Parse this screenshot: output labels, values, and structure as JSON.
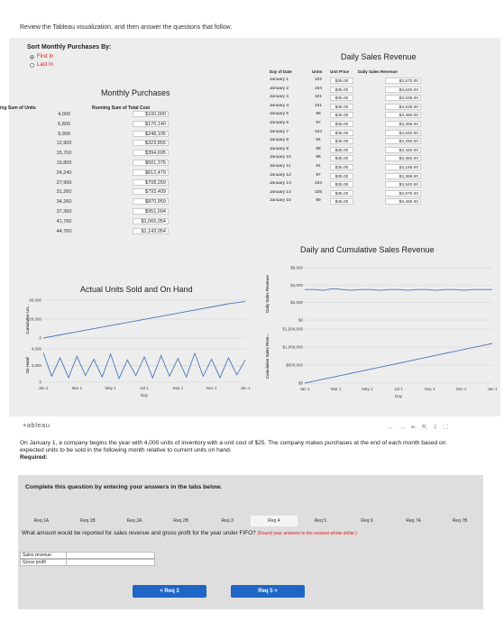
{
  "instruction": "Review the Tableau visualization, and then answer the questions that follow.",
  "sort": {
    "title": "Sort Monthly Purchases By:",
    "options": [
      "First In",
      "Last In"
    ],
    "selected": "First In"
  },
  "monthly_purchases": {
    "title": "Monthly Purchases",
    "col1_header": "ing Sum of Units",
    "col2_header": "Running Sum of Total Cost",
    "units": [
      "4,000",
      "6,800",
      "9,900",
      "12,900",
      "15,700",
      "19,800",
      "24,240",
      "27,960",
      "31,260",
      "34,260",
      "37,360",
      "41,760",
      "44,760"
    ],
    "costs": [
      "$100,000",
      "$170,140",
      "$248,105",
      "$323,855",
      "$394,695",
      "$501,375",
      "$612,479",
      "$708,269",
      "$793,409",
      "$870,959",
      "$951,094",
      "$1,065,054",
      "$1,143,054"
    ]
  },
  "daily_sales": {
    "title": "Daily Sales Revenue",
    "headers": {
      "date": "Day of Date",
      "units": "Units",
      "price": "Unit Price",
      "revenue": "Daily Sales Revenue"
    },
    "rows": [
      {
        "date": "January 1",
        "units": "102",
        "price": "$35.00",
        "revenue": "$3,570.00"
      },
      {
        "date": "January 2",
        "units": "104",
        "price": "$35.00",
        "revenue": "$3,640.00"
      },
      {
        "date": "January 3",
        "units": "101",
        "price": "$35.00",
        "revenue": "$3,535.00"
      },
      {
        "date": "January 4",
        "units": "101",
        "price": "$35.00",
        "revenue": "$3,535.00"
      },
      {
        "date": "January 5",
        "units": "96",
        "price": "$35.00",
        "revenue": "$3,360.00"
      },
      {
        "date": "January 6",
        "units": "97",
        "price": "$35.00",
        "revenue": "$3,395.00"
      },
      {
        "date": "January 7",
        "units": "104",
        "price": "$35.00",
        "revenue": "$3,640.00"
      },
      {
        "date": "January 8",
        "units": "94",
        "price": "$35.00",
        "revenue": "$3,290.00"
      },
      {
        "date": "January 9",
        "units": "98",
        "price": "$35.00",
        "revenue": "$3,430.00"
      },
      {
        "date": "January 10",
        "units": "96",
        "price": "$35.00",
        "revenue": "$3,360.00"
      },
      {
        "date": "January 11",
        "units": "91",
        "price": "$35.00",
        "revenue": "$3,185.00"
      },
      {
        "date": "January 12",
        "units": "97",
        "price": "$35.00",
        "revenue": "$3,395.00"
      },
      {
        "date": "January 13",
        "units": "104",
        "price": "$35.00",
        "revenue": "$3,640.00"
      },
      {
        "date": "January 14",
        "units": "105",
        "price": "$35.00",
        "revenue": "$3,675.00"
      },
      {
        "date": "January 15",
        "units": "99",
        "price": "$35.00",
        "revenue": "$3,465.00"
      }
    ]
  },
  "chart_data": [
    {
      "type": "line",
      "title": "Daily and Cumulative Sales Revenue",
      "panels": [
        {
          "ylabel": "Daily Sales Revenue",
          "yticks": [
            "$6,000",
            "$4,000",
            "$2,000",
            "$0"
          ],
          "ylim": [
            0,
            6000
          ],
          "series": [
            {
              "values": [
                3500,
                3500,
                3400,
                3600,
                3500,
                3400,
                3500,
                3500,
                3400,
                3500,
                3500,
                3400,
                3500,
                3500,
                3400,
                3500,
                3500,
                3400,
                3500,
                3500,
                3500
              ]
            }
          ]
        },
        {
          "ylabel": "Cumulative Sales Reve...",
          "yticks": [
            "$1,500,000",
            "$1,000,000",
            "$500,000",
            "$0"
          ],
          "ylim": [
            0,
            1500000
          ],
          "series": [
            {
              "values": [
                0,
                55000,
                110000,
                165000,
                220000,
                275000,
                330000,
                385000,
                440000,
                495000,
                550000,
                605000,
                660000,
                715000,
                770000,
                825000,
                880000,
                935000,
                990000,
                1045000,
                1100000
              ]
            }
          ]
        }
      ],
      "xticks": [
        "Jan 1",
        "Mar 1",
        "May 1",
        "Jul 1",
        "Sep 1",
        "Nov 1",
        "Jan 1"
      ],
      "xlabel": "Day"
    },
    {
      "type": "line",
      "title": "Actual Units Sold and On Hand",
      "panels": [
        {
          "ylabel": "Cumulative Un...",
          "yticks": [
            "40,000",
            "20,000",
            "0"
          ],
          "ylim": [
            0,
            45000
          ],
          "series": [
            {
              "values": [
                0,
                3700,
                7400,
                11100,
                14800,
                18500,
                22200,
                25900,
                29600,
                33300,
                37000,
                40700,
                43500
              ]
            }
          ]
        },
        {
          "ylabel": "On Hand",
          "yticks": [
            "4,000",
            "2,000",
            "0"
          ],
          "ylim": [
            0,
            4500
          ],
          "series": [
            {
              "values": [
                4000,
                800,
                3300,
                600,
                3500,
                900,
                3100,
                700,
                3800,
                500,
                3000,
                900,
                3400,
                600,
                3600,
                800,
                3200,
                700,
                3900,
                800,
                3100,
                600,
                3300,
                1000,
                3000
              ]
            }
          ]
        }
      ],
      "xticks": [
        "Jan 1",
        "Mar 1",
        "May 1",
        "Jul 1",
        "Sep 1",
        "Nov 1",
        "Jan 1"
      ],
      "xlabel": "Day"
    }
  ],
  "tableau_logo": "+ableau",
  "problem": "On January 1, a company begins the year with 4,000 units of inventory with a unit cost of $25. The company makes purchases at the end of each month based on expected units to be sold in the following month relative to current units on hand.",
  "required_label": "Required:",
  "complete_text": "Complete this question by entering your answers in the tabs below.",
  "tabs": [
    "Req 1A",
    "Req 1B",
    "Req 2A",
    "Req 2B",
    "Req 3",
    "Req 4",
    "Req 5",
    "Req 6",
    "Req 7A",
    "Req 7B"
  ],
  "active_tab": "Req 4",
  "question": "What amount would be reported for sales revenue and gross profit for the year under FIFO?",
  "question_note": "(Round your answers to the nearest whole dollar.)",
  "input_rows": [
    "Sales revenue",
    "Gross profit"
  ],
  "prev_button": "< Req 3",
  "next_button": "Req 5 >"
}
